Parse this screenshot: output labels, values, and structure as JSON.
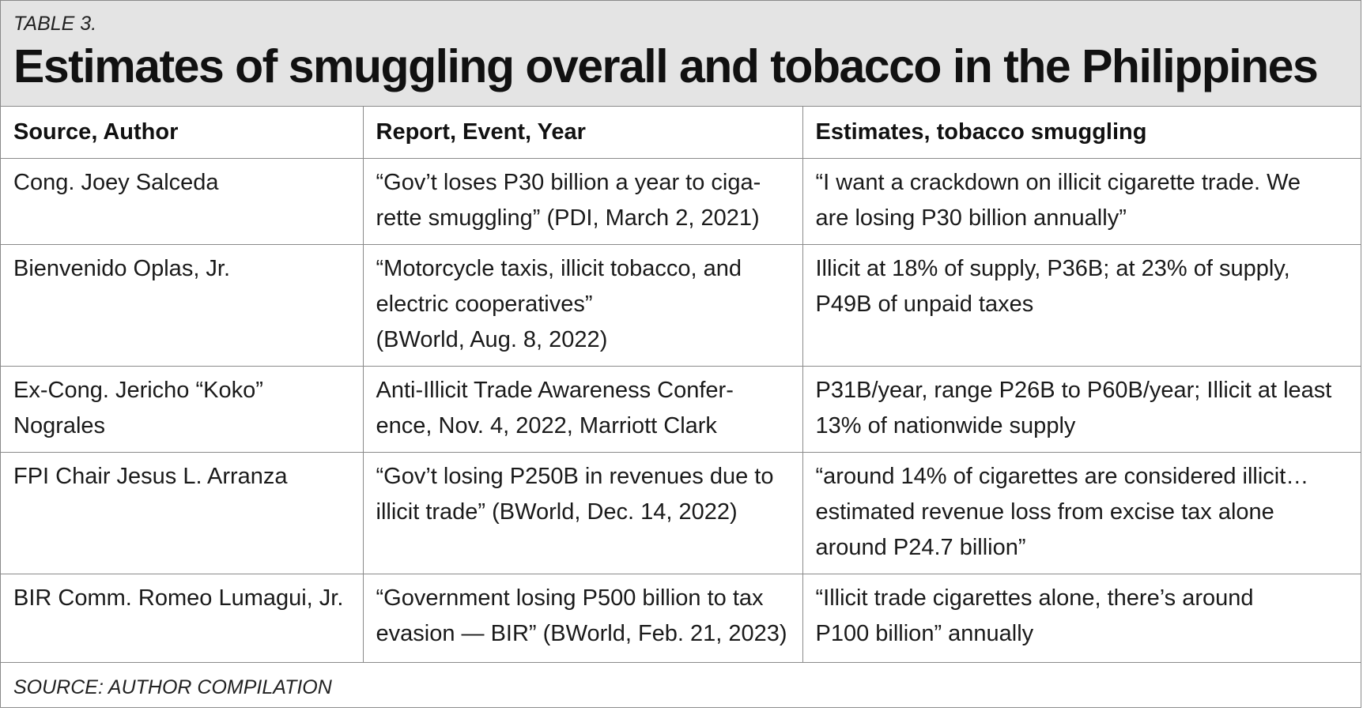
{
  "header": {
    "table_label": "TABLE 3.",
    "title": "Estimates of smuggling overall and tobacco in the Philippines"
  },
  "table": {
    "columns": [
      "Source, Author",
      "Report, Event, Year",
      "Estimates, tobacco smuggling"
    ],
    "rows": [
      {
        "source": "Cong. Joey Salceda",
        "report": "“Gov’t loses P30 billion a year to ciga-\nrette smuggling” (PDI, March 2, 2021)",
        "estimate": "“I want a crackdown on illicit cigarette trade. We\nare losing P30 billion annually”"
      },
      {
        "source": "Bienvenido Oplas, Jr.",
        "report": "“Motorcycle taxis, illicit tobacco, and\nelectric cooperatives”\n(BWorld, Aug. 8, 2022)",
        "estimate": "Illicit at 18% of supply, P36B; at 23% of supply,\nP49B of unpaid taxes"
      },
      {
        "source": "Ex-Cong. Jericho “Koko”\nNograles",
        "report": "Anti-Illicit Trade Awareness Confer-\nence, Nov. 4, 2022, Marriott Clark",
        "estimate": "P31B/year, range P26B to P60B/year; Illicit at least\n13% of nationwide supply"
      },
      {
        "source": "FPI Chair Jesus L. Arranza",
        "report": "“Gov’t losing P250B in revenues due to\nillicit trade” (BWorld, Dec. 14, 2022)",
        "estimate": "“around 14% of cigarettes are considered illicit…\nestimated revenue loss from excise tax alone\naround P24.7 billion”"
      },
      {
        "source": "BIR Comm. Romeo Lumagui, Jr.",
        "report": "“Government losing P500 billion to tax\nevasion — BIR” (BWorld, Feb. 21, 2023)",
        "estimate": "“Illicit trade cigarettes alone, there’s around\nP100 billion” annually"
      }
    ]
  },
  "footer": {
    "source_note": "SOURCE: AUTHOR COMPILATION"
  },
  "colors": {
    "header_bg": "#e4e4e4",
    "border": "#8a8a8a",
    "text": "#1a1a1a"
  }
}
